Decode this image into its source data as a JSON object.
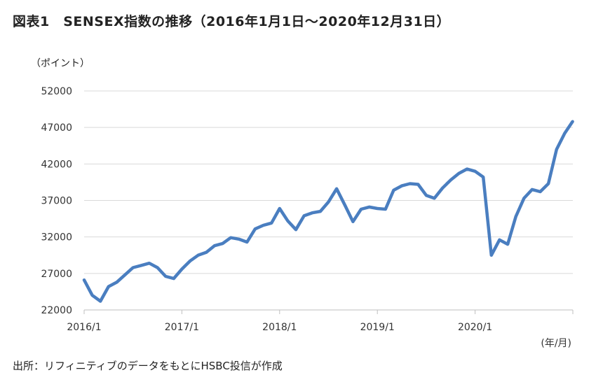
{
  "header": {
    "title": "図表1　SENSEX指数の推移（2016年1月1日〜2020年12月31日）",
    "y_unit": "（ポイント）",
    "x_unit": "(年/月)"
  },
  "footer": {
    "source": "出所：リフィニティブのデータをもとにHSBC投信が作成"
  },
  "colors": {
    "line": "#4a7ec0",
    "grid": "#d9d9d9",
    "axis": "#bfbfbf"
  },
  "chart_data": {
    "type": "line",
    "ylabel": "（ポイント）",
    "xlabel": "(年/月)",
    "ylim": [
      22000,
      52000
    ],
    "yticks": [
      22000,
      27000,
      32000,
      37000,
      42000,
      47000,
      52000
    ],
    "xlim": [
      "2016-01",
      "2021-01"
    ],
    "xticks": [
      "2016/1",
      "2017/1",
      "2018/1",
      "2019/1",
      "2020/1"
    ],
    "grid": true,
    "legend": "none",
    "series": [
      {
        "x": [
          "2016-01",
          "2016-02",
          "2016-03",
          "2016-04",
          "2016-05",
          "2016-06",
          "2016-07",
          "2016-08",
          "2016-09",
          "2016-10",
          "2016-11",
          "2016-12",
          "2017-01",
          "2017-02",
          "2017-03",
          "2017-04",
          "2017-05",
          "2017-06",
          "2017-07",
          "2017-08",
          "2017-09",
          "2017-10",
          "2017-11",
          "2017-12",
          "2018-01",
          "2018-02",
          "2018-03",
          "2018-04",
          "2018-05",
          "2018-06",
          "2018-07",
          "2018-08",
          "2018-09",
          "2018-10",
          "2018-11",
          "2018-12",
          "2019-01",
          "2019-02",
          "2019-03",
          "2019-04",
          "2019-05",
          "2019-06",
          "2019-07",
          "2019-08",
          "2019-09",
          "2019-10",
          "2019-11",
          "2019-12",
          "2020-01",
          "2020-02",
          "2020-03",
          "2020-04",
          "2020-05",
          "2020-06",
          "2020-07",
          "2020-08",
          "2020-09",
          "2020-10",
          "2020-11",
          "2020-12",
          "2020-12-31"
        ],
        "values": [
          26100,
          24000,
          23200,
          25200,
          25800,
          26800,
          27800,
          28100,
          28400,
          27800,
          26600,
          26300,
          27600,
          28700,
          29500,
          29900,
          30800,
          31100,
          31900,
          31700,
          31300,
          33100,
          33600,
          33900,
          35900,
          34200,
          33000,
          34900,
          35300,
          35500,
          36800,
          38600,
          36400,
          34100,
          35800,
          36100,
          35900,
          35800,
          38400,
          39000,
          39300,
          39200,
          37700,
          37300,
          38700,
          39800,
          40700,
          41300,
          41000,
          40200,
          29500,
          31600,
          31000,
          34800,
          37300,
          38500,
          38200,
          39300,
          44000,
          46200,
          47800
        ]
      }
    ]
  }
}
